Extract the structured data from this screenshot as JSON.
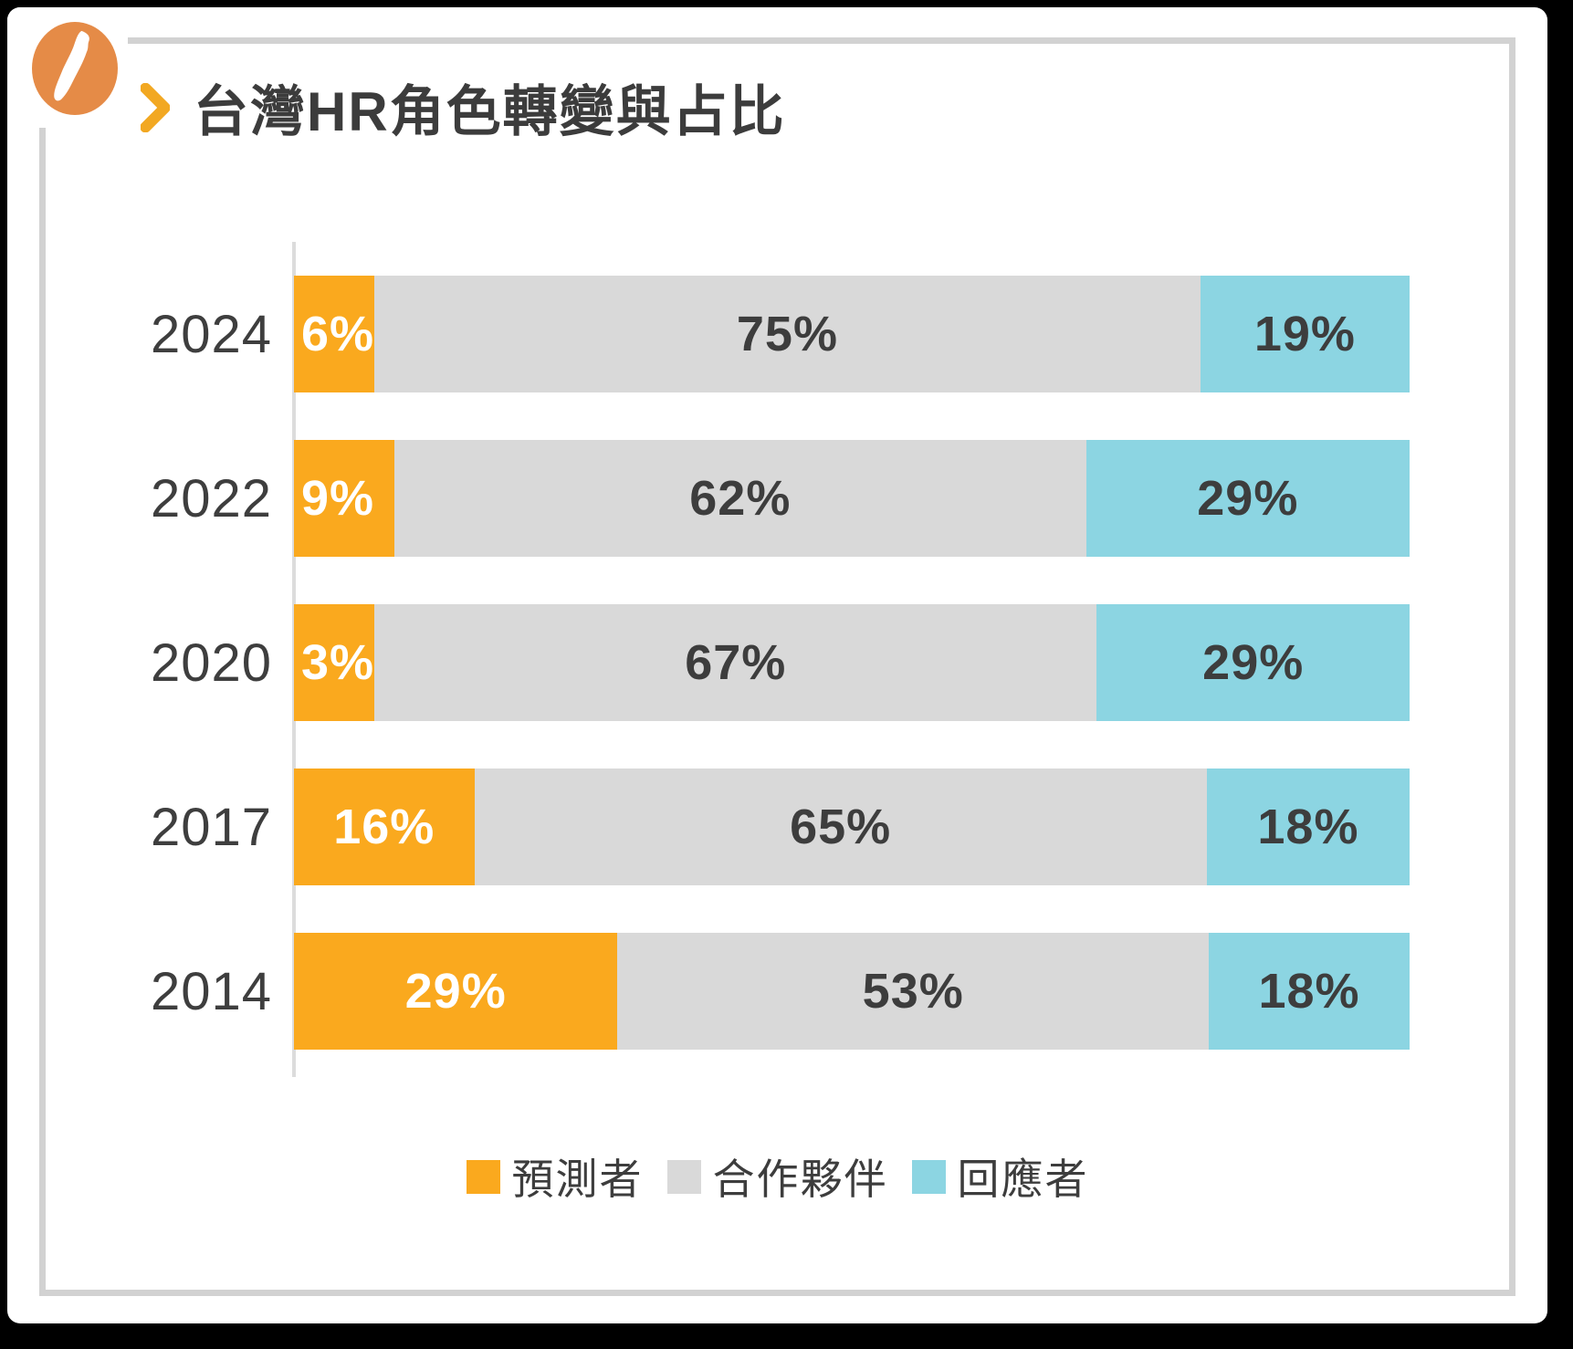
{
  "logo": {
    "icon": "taiwan-island-icon"
  },
  "header": {
    "title": "台灣HR角色轉變與占比"
  },
  "chart_data": {
    "type": "bar",
    "variant": "horizontal-stacked",
    "title": "台灣HR角色轉變與占比",
    "categories": [
      "2024",
      "2022",
      "2020",
      "2017",
      "2014"
    ],
    "series": [
      {
        "name": "預測者",
        "color": "#FAA91E",
        "values": [
          6,
          9,
          3,
          16,
          29
        ]
      },
      {
        "name": "合作夥伴",
        "color": "#D9D9D9",
        "values": [
          75,
          62,
          67,
          65,
          53
        ]
      },
      {
        "name": "回應者",
        "color": "#8CD5E2",
        "values": [
          19,
          29,
          29,
          18,
          18
        ]
      }
    ],
    "value_suffix": "%",
    "xlim": [
      0,
      100
    ],
    "grid": false,
    "legend_position": "bottom",
    "label_colors": {
      "預測者": "#FFFFFF",
      "合作夥伴": "#3D3D3D",
      "回應者": "#3D3D3D"
    }
  },
  "colors": {
    "accent_orange": "#FAA91E",
    "logo_orange": "#E58B47",
    "segment_gray": "#D9D9D9",
    "segment_cyan": "#8CD5E2",
    "frame_gray": "#D2D2D2",
    "text_dark": "#3D3D3D",
    "background": "#000000",
    "card": "#FFFFFF"
  }
}
